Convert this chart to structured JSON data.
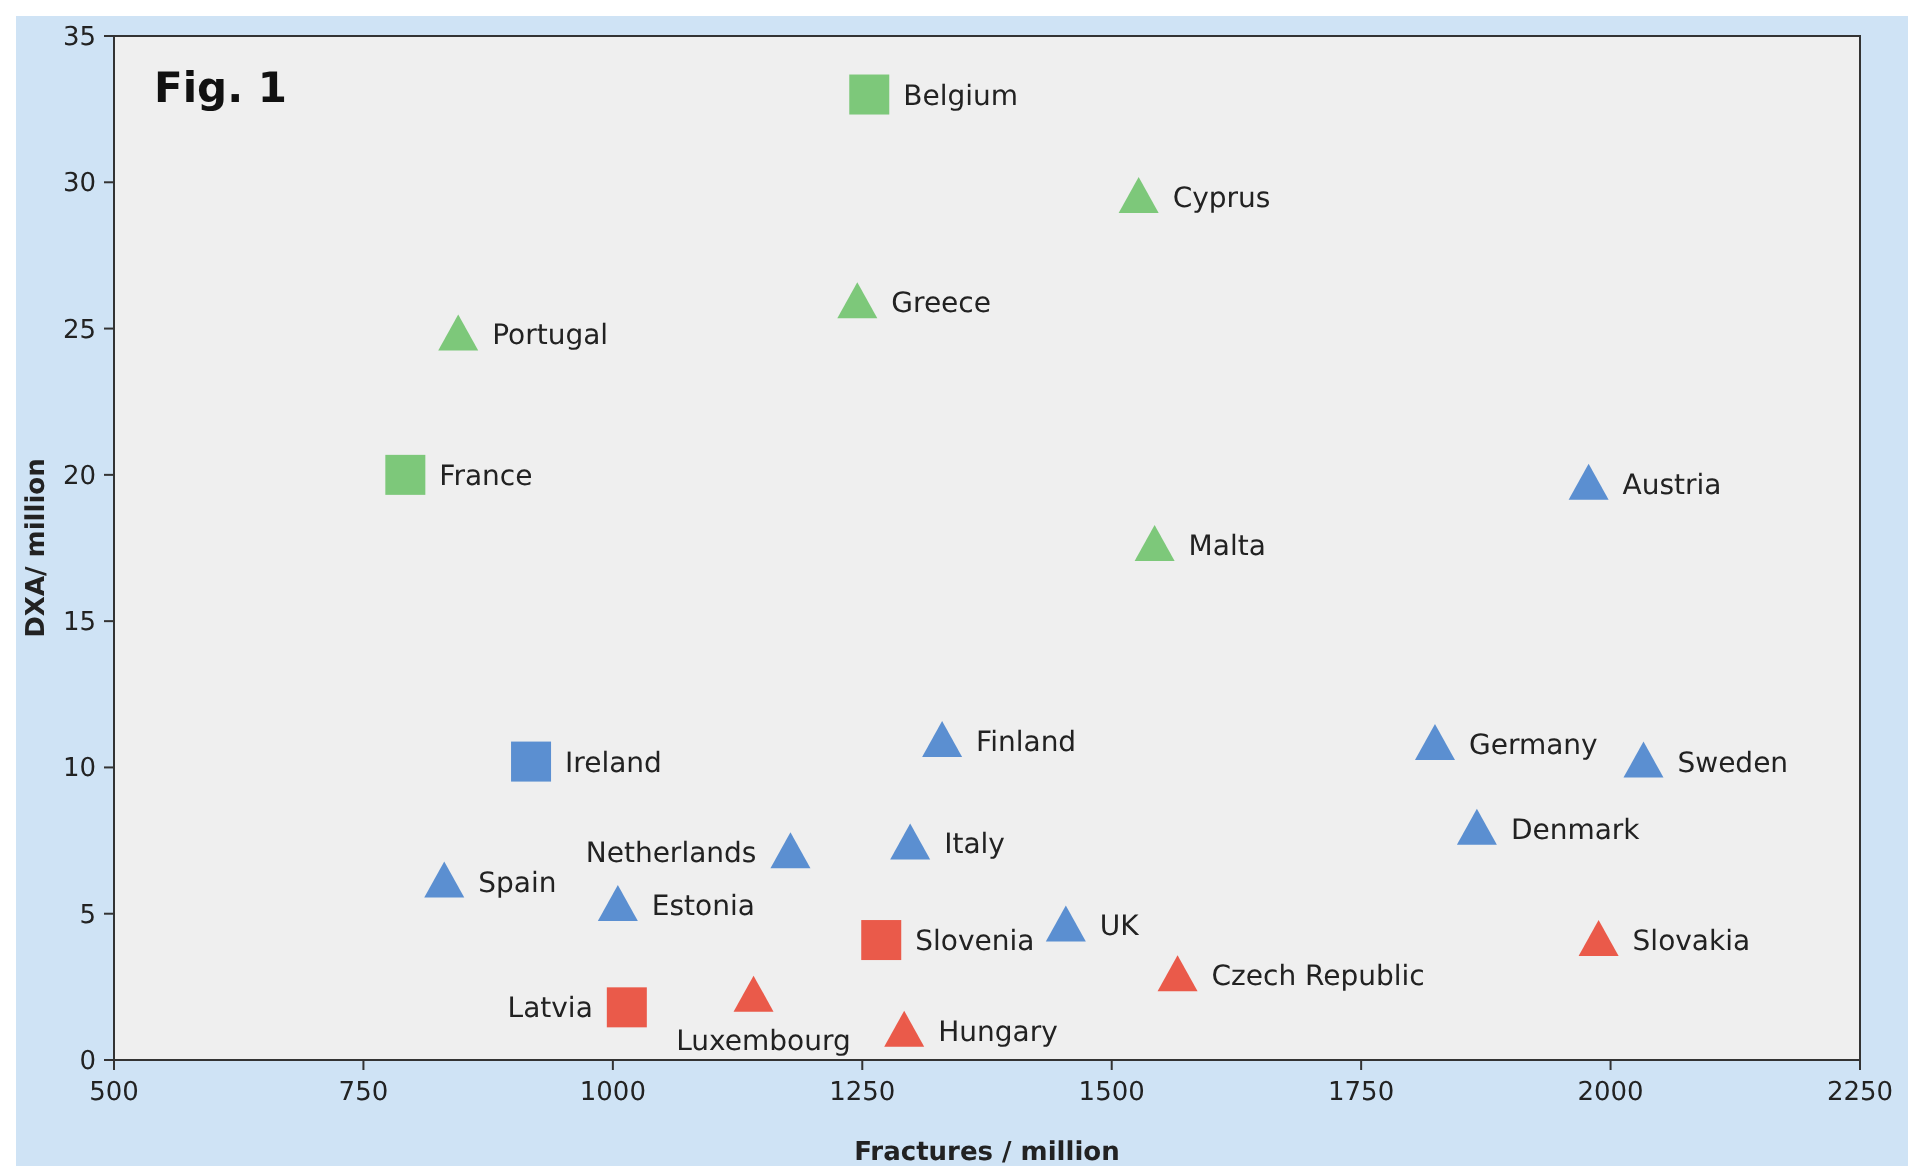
{
  "chart_data": {
    "type": "scatter",
    "title": "Fig. 1",
    "xlabel": "Fractures / million",
    "ylabel": "DXA/ million",
    "xlim": [
      500,
      2250
    ],
    "xticks": [
      500,
      750,
      1000,
      1250,
      1500,
      1750,
      2000,
      2250
    ],
    "ylim": [
      0,
      35
    ],
    "yticks": [
      0,
      5,
      10,
      15,
      20,
      25,
      30,
      35
    ],
    "grid": false,
    "series": [
      {
        "color": "#7dc87a",
        "marker": "triangle",
        "x": [
          1527,
          1245,
          845,
          1543
        ],
        "values": [
          29.5,
          25.9,
          24.8,
          17.6
        ]
      },
      {
        "color": "#7dc87a",
        "marker": "square",
        "x": [
          1257,
          792
        ],
        "values": [
          33.0,
          20.0
        ]
      },
      {
        "color": "#5b8fd1",
        "marker": "triangle",
        "x": [
          1978,
          1330,
          1824,
          2033,
          1866,
          1298,
          1178,
          831,
          1005,
          1454
        ],
        "values": [
          19.7,
          10.9,
          10.8,
          10.2,
          7.9,
          7.4,
          7.1,
          6.1,
          5.3,
          4.6
        ]
      },
      {
        "color": "#5b8fd1",
        "marker": "square",
        "x": [
          918
        ],
        "values": [
          10.2
        ]
      },
      {
        "color": "#ea5a4a",
        "marker": "triangle",
        "x": [
          1988,
          1566,
          1141,
          1292
        ],
        "values": [
          4.1,
          2.9,
          2.2,
          1.0
        ]
      },
      {
        "color": "#ea5a4a",
        "marker": "square",
        "x": [
          1269,
          1014
        ],
        "values": [
          4.1,
          1.8
        ]
      }
    ],
    "annotations": [
      {
        "text": "Belgium",
        "x": 1257,
        "y": 33.0
      },
      {
        "text": "Cyprus",
        "x": 1527,
        "y": 29.5
      },
      {
        "text": "Greece",
        "x": 1245,
        "y": 25.9
      },
      {
        "text": "Portugal",
        "x": 845,
        "y": 24.8
      },
      {
        "text": "France",
        "x": 792,
        "y": 20.0
      },
      {
        "text": "Malta",
        "x": 1543,
        "y": 17.6
      },
      {
        "text": "Austria",
        "x": 1978,
        "y": 19.7
      },
      {
        "text": "Ireland",
        "x": 918,
        "y": 10.2
      },
      {
        "text": "Finland",
        "x": 1330,
        "y": 10.9
      },
      {
        "text": "Germany",
        "x": 1824,
        "y": 10.8
      },
      {
        "text": "Sweden",
        "x": 2033,
        "y": 10.2
      },
      {
        "text": "Denmark",
        "x": 1866,
        "y": 7.9
      },
      {
        "text": "Italy",
        "x": 1298,
        "y": 7.4
      },
      {
        "text": "Netherlands",
        "x": 1178,
        "y": 7.1
      },
      {
        "text": "Spain",
        "x": 831,
        "y": 6.1
      },
      {
        "text": "Estonia",
        "x": 1005,
        "y": 5.3
      },
      {
        "text": "UK",
        "x": 1454,
        "y": 4.6
      },
      {
        "text": "Slovenia",
        "x": 1269,
        "y": 4.1
      },
      {
        "text": "Slovakia",
        "x": 1988,
        "y": 4.1
      },
      {
        "text": "Czech Republic",
        "x": 1566,
        "y": 2.9
      },
      {
        "text": "Luxembourg",
        "x": 1141,
        "y": 2.2
      },
      {
        "text": "Latvia",
        "x": 1014,
        "y": 1.8
      },
      {
        "text": "Hungary",
        "x": 1292,
        "y": 1.0
      }
    ]
  }
}
